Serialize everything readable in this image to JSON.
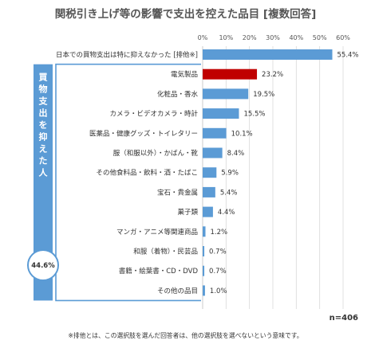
{
  "chart_data": {
    "type": "bar",
    "orientation": "horizontal",
    "title": "関税引き上げ等の影響で支出を控えた品目 [複数回答]",
    "xlim": [
      0,
      60
    ],
    "x_ticks": [
      "0%",
      "10%",
      "20%",
      "30%",
      "40%",
      "50%",
      "60%"
    ],
    "categories": [
      "日本での買物支出は特に抑えなかった [排他※]",
      "電気製品",
      "化粧品・香水",
      "カメラ・ビデオカメラ・時計",
      "医薬品・健康グッズ・トイレタリー",
      "服（和服以外）・かばん・靴",
      "その他食料品・飲料・酒・たばこ",
      "宝石・貴金属",
      "菓子類",
      "マンガ・アニメ等関連商品",
      "和服（着物）・民芸品",
      "書籍・絵葉書・CD・DVD",
      "その他の品目"
    ],
    "values": [
      55.4,
      23.2,
      19.5,
      15.5,
      10.1,
      8.4,
      5.9,
      5.4,
      4.4,
      1.2,
      0.7,
      0.7,
      1.0
    ],
    "value_labels": [
      "55.4%",
      "23.2%",
      "19.5%",
      "15.5%",
      "10.1%",
      "8.4%",
      "5.9%",
      "5.4%",
      "4.4%",
      "1.2%",
      "0.7%",
      "0.7%",
      "1.0%"
    ],
    "highlight_index": 1,
    "group": {
      "label_chars": [
        "買",
        "物",
        "支",
        "出",
        "を",
        "抑",
        "え",
        "た",
        "人"
      ],
      "total_label": "44.6%"
    },
    "n_label": "n=406",
    "footnote": "※排他とは、この選択肢を選んだ回答者は、他の選択肢を選べないという意味です。",
    "colors": {
      "bar": "#5b9bd5",
      "highlight": "#c00000",
      "bracket": "#5b9bd5",
      "grid": "#d9d9d9"
    }
  }
}
